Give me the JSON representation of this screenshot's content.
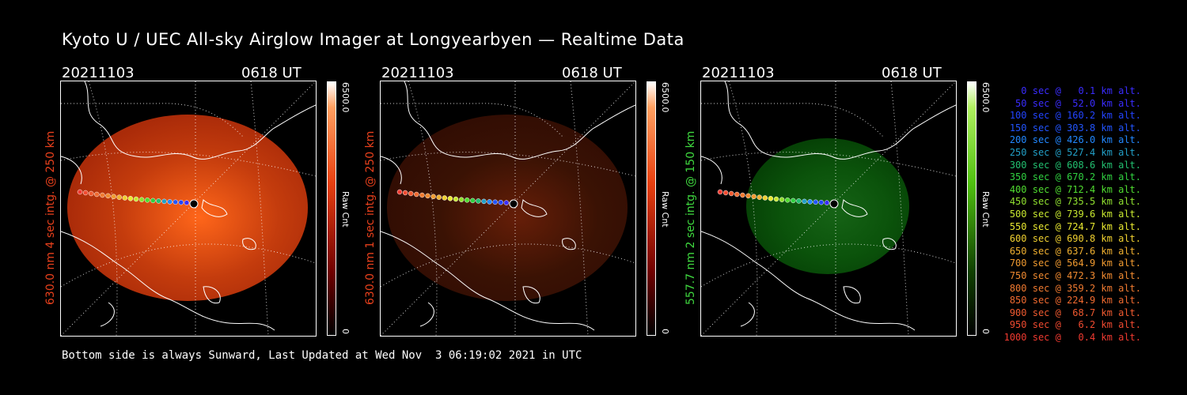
{
  "title": "Kyoto U / UEC All-sky Airglow Imager at Longyearbyen — Realtime Data",
  "footer": "Bottom side is always Sunward, Last Updated at Wed Nov  3 06:19:02 2021 in UTC",
  "panels": [
    {
      "date": "20211103",
      "time": "0618 UT",
      "ylabel": "630.0 nm 4 sec intg. @ 250 km",
      "label_color": "#e8401c",
      "cbar_max": "6500.0",
      "cbar_min": "0",
      "cbar_label": "Raw Cnt",
      "brightness": 0.85,
      "hue": "red"
    },
    {
      "date": "20211103",
      "time": "0618 UT",
      "ylabel": "630.0 nm 1 sec intg. @ 250 km",
      "label_color": "#e8401c",
      "cbar_max": "6500.0",
      "cbar_min": "0",
      "cbar_label": "Raw Cnt",
      "brightness": 0.25,
      "hue": "red"
    },
    {
      "date": "20211103",
      "time": "0618 UT",
      "ylabel": "557.7 nm 2 sec intg. @ 150 km",
      "label_color": "#3fd93f",
      "cbar_max": "6500.0",
      "cbar_min": "0",
      "cbar_label": "Raw Cnt",
      "brightness": 0.55,
      "hue": "green"
    }
  ],
  "legend": [
    {
      "text": "0 sec @   0.1 km alt.",
      "color": "#3a2cff"
    },
    {
      "text": "50 sec @  52.0 km alt.",
      "color": "#3a2cff"
    },
    {
      "text": "100 sec @ 160.2 km alt.",
      "color": "#2244ff"
    },
    {
      "text": "150 sec @ 303.8 km alt.",
      "color": "#2255ff"
    },
    {
      "text": "200 sec @ 426.0 km alt.",
      "color": "#2288ff"
    },
    {
      "text": "250 sec @ 527.4 km alt.",
      "color": "#22a0c8"
    },
    {
      "text": "300 sec @ 608.6 km alt.",
      "color": "#22c070"
    },
    {
      "text": "350 sec @ 670.2 km alt.",
      "color": "#30d040"
    },
    {
      "text": "400 sec @ 712.4 km alt.",
      "color": "#50dd30"
    },
    {
      "text": "450 sec @ 735.5 km alt.",
      "color": "#90e030"
    },
    {
      "text": "500 sec @ 739.6 km alt.",
      "color": "#c8e830"
    },
    {
      "text": "550 sec @ 724.7 km alt.",
      "color": "#e8e830"
    },
    {
      "text": "600 sec @ 690.8 km alt.",
      "color": "#f0d030"
    },
    {
      "text": "650 sec @ 637.6 km alt.",
      "color": "#f0b030"
    },
    {
      "text": "700 sec @ 564.9 km alt.",
      "color": "#f09a30"
    },
    {
      "text": "750 sec @ 472.3 km alt.",
      "color": "#f08a30"
    },
    {
      "text": "800 sec @ 359.2 km alt.",
      "color": "#f07a30"
    },
    {
      "text": "850 sec @ 224.9 km alt.",
      "color": "#f06a30"
    },
    {
      "text": "900 sec @  68.7 km alt.",
      "color": "#f05a30"
    },
    {
      "text": "950 sec @   6.2 km alt.",
      "color": "#f04a30"
    },
    {
      "text": "1000 sec @   0.4 km alt.",
      "color": "#f03a30"
    }
  ]
}
